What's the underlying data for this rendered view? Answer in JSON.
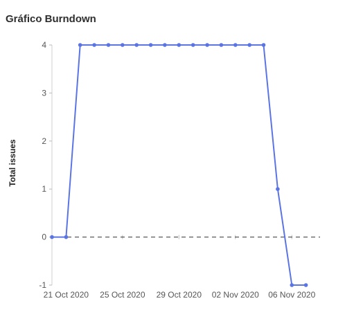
{
  "page": {
    "title": "Gráfico Burndown"
  },
  "chart_data": {
    "type": "line",
    "title": "Gráfico Burndown",
    "xlabel": "",
    "ylabel": "Total issues",
    "x": [
      "2020-10-20",
      "2020-10-21",
      "2020-10-22",
      "2020-10-23",
      "2020-10-24",
      "2020-10-25",
      "2020-10-26",
      "2020-10-27",
      "2020-10-28",
      "2020-10-29",
      "2020-10-30",
      "2020-10-31",
      "2020-11-01",
      "2020-11-02",
      "2020-11-03",
      "2020-11-04",
      "2020-11-05",
      "2020-11-06",
      "2020-11-07",
      "2020-11-08"
    ],
    "series": [
      {
        "values": [
          0,
          0,
          4,
          4,
          4,
          4,
          4,
          4,
          4,
          4,
          4,
          4,
          4,
          4,
          4,
          4,
          1,
          -1,
          -1,
          null
        ],
        "color": "#5b74e4"
      }
    ],
    "x_ticks": [
      "21 Oct 2020",
      "25 Oct 2020",
      "29 Oct 2020",
      "02 Nov 2020",
      "06 Nov 2020"
    ],
    "x_tick_dates": [
      "2020-10-21",
      "2020-10-25",
      "2020-10-29",
      "2020-11-02",
      "2020-11-06"
    ],
    "y_ticks": [
      -1,
      0,
      1,
      2,
      3,
      4
    ],
    "ylim": [
      -1,
      4
    ],
    "xlim": [
      "2020-10-20",
      "2020-11-08"
    ],
    "reference_line": {
      "y": 0,
      "style": "dashed",
      "color": "#333333"
    },
    "grid": false,
    "legend": "none"
  }
}
